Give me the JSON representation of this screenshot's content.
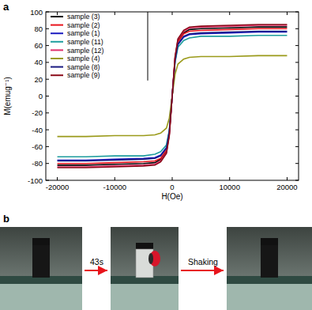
{
  "chart_data": {
    "type": "line",
    "panel_label": "a",
    "x_label": "H(Oe)",
    "y_label": "M(emug⁻¹)",
    "x": [
      -20000,
      -15000,
      -10000,
      -5000,
      -3000,
      -2000,
      -1000,
      -500,
      0,
      500,
      1000,
      2000,
      3000,
      5000,
      10000,
      15000,
      20000
    ],
    "xlim": [
      -22000,
      22000
    ],
    "xticks": [
      -20000,
      -10000,
      0,
      10000,
      20000
    ],
    "ylim": [
      -100,
      100
    ],
    "yticks": [
      -100,
      -80,
      -60,
      -40,
      -20,
      0,
      20,
      40,
      60,
      80,
      100
    ],
    "grid": false,
    "legend": "upper left",
    "series": [
      {
        "name": "sample (3)",
        "color": "#000000",
        "values": [
          -82,
          -82,
          -81,
          -80,
          -79,
          -75,
          -66,
          -45,
          0,
          45,
          66,
          75,
          79,
          80,
          81,
          82,
          82
        ]
      },
      {
        "name": "sample (2)",
        "color": "#e8141c",
        "values": [
          -80,
          -80,
          -79,
          -78,
          -77,
          -74,
          -64,
          -44,
          0,
          44,
          64,
          74,
          77,
          78,
          79,
          80,
          80
        ]
      },
      {
        "name": "sample (1)",
        "color": "#1c1cc0",
        "values": [
          -76,
          -76,
          -75,
          -74,
          -73,
          -70,
          -61,
          -42,
          0,
          42,
          61,
          70,
          73,
          74,
          75,
          76,
          76
        ]
      },
      {
        "name": "sample (11)",
        "color": "#1f9e9e",
        "values": [
          -72,
          -72,
          -71,
          -71,
          -69,
          -66,
          -58,
          -40,
          0,
          40,
          58,
          66,
          69,
          71,
          71,
          72,
          72
        ]
      },
      {
        "name": "sample (12)",
        "color": "#e0306a",
        "values": [
          -84,
          -84,
          -83,
          -82,
          -81,
          -77,
          -67,
          -46,
          0,
          46,
          67,
          77,
          81,
          82,
          83,
          84,
          84
        ]
      },
      {
        "name": "sample (4)",
        "color": "#9a9a1a",
        "values": [
          -48,
          -48,
          -47,
          -47,
          -46,
          -44,
          -38,
          -26,
          0,
          26,
          38,
          44,
          46,
          47,
          47,
          48,
          48
        ]
      },
      {
        "name": "sample (8)",
        "color": "#1a1a80",
        "values": [
          -77,
          -77,
          -76,
          -75,
          -74,
          -71,
          -62,
          -42,
          0,
          42,
          62,
          71,
          74,
          75,
          76,
          77,
          77
        ]
      },
      {
        "name": "sample (9)",
        "color": "#8b0b1a",
        "values": [
          -85,
          -85,
          -84,
          -83,
          -82,
          -78,
          -68,
          -47,
          0,
          47,
          68,
          78,
          82,
          83,
          84,
          85,
          85
        ]
      }
    ]
  },
  "photos": {
    "panel_label": "b",
    "steps": [
      "43s",
      "Shaking"
    ]
  }
}
